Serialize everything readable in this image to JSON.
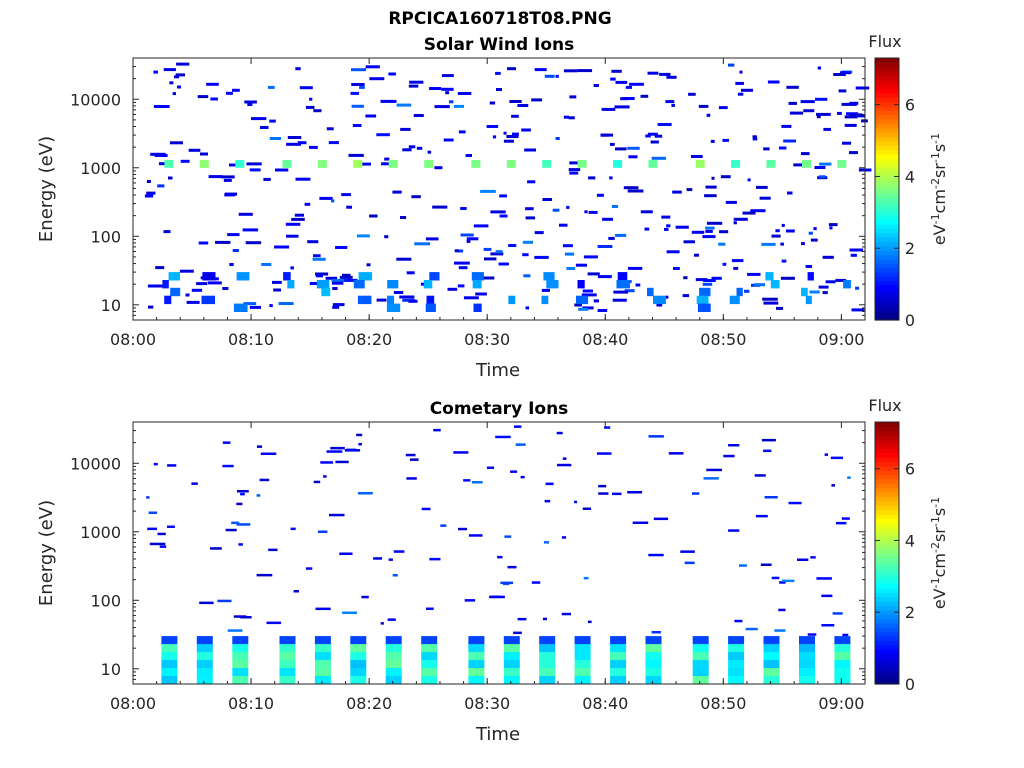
{
  "figure_title": "RPCICA160718T08.PNG",
  "colormap": [
    "#00007f",
    "#0000ff",
    "#007fff",
    "#00ffff",
    "#7fff7f",
    "#ffff00",
    "#ff7f00",
    "#ff0000",
    "#7f0000"
  ],
  "chart_data": [
    {
      "type": "heatmap",
      "title": "Solar Wind Ions",
      "xlabel": "Time",
      "ylabel": "Energy (eV)",
      "x_ticks": [
        "08:00",
        "08:10",
        "08:20",
        "08:30",
        "08:40",
        "08:50",
        "09:00"
      ],
      "y_ticks": [
        "10",
        "100",
        "1000",
        "10000"
      ],
      "y_scale": "log",
      "xlim": [
        "08:00",
        "09:02"
      ],
      "ylim": [
        6,
        40000
      ],
      "colorbar": {
        "label": "Flux",
        "unit": "eV-1cm-2sr-1s-1",
        "ticks": [
          "0",
          "2",
          "4",
          "6"
        ],
        "range": [
          0,
          7.3
        ]
      },
      "sample_times": [
        "08:03",
        "08:06",
        "08:09",
        "08:13",
        "08:16",
        "08:19",
        "08:22",
        "08:25",
        "08:29",
        "08:32",
        "08:35",
        "08:38",
        "08:41",
        "08:44",
        "08:48",
        "08:51",
        "08:54",
        "08:57",
        "09:00"
      ],
      "features": [
        {
          "band": "1000-1300 eV",
          "value": 3.4
        },
        {
          "band": "8-30 eV",
          "value": 1.5
        }
      ]
    },
    {
      "type": "heatmap",
      "title": "Cometary Ions",
      "xlabel": "Time",
      "ylabel": "Energy (eV)",
      "x_ticks": [
        "08:00",
        "08:10",
        "08:20",
        "08:30",
        "08:40",
        "08:50",
        "09:00"
      ],
      "y_ticks": [
        "10",
        "100",
        "1000",
        "10000"
      ],
      "y_scale": "log",
      "xlim": [
        "08:00",
        "09:02"
      ],
      "ylim": [
        6,
        40000
      ],
      "colorbar": {
        "label": "Flux",
        "unit": "eV-1cm-2sr-1s-1",
        "ticks": [
          "0",
          "2",
          "4",
          "6"
        ],
        "range": [
          0,
          7.3
        ]
      },
      "sample_times": [
        "08:03",
        "08:06",
        "08:09",
        "08:13",
        "08:16",
        "08:19",
        "08:22",
        "08:25",
        "08:29",
        "08:32",
        "08:35",
        "08:38",
        "08:41",
        "08:44",
        "08:48",
        "08:51",
        "08:54",
        "08:57",
        "09:00"
      ],
      "features": [
        {
          "band": "6-30 eV",
          "value": 2.8
        }
      ]
    }
  ]
}
